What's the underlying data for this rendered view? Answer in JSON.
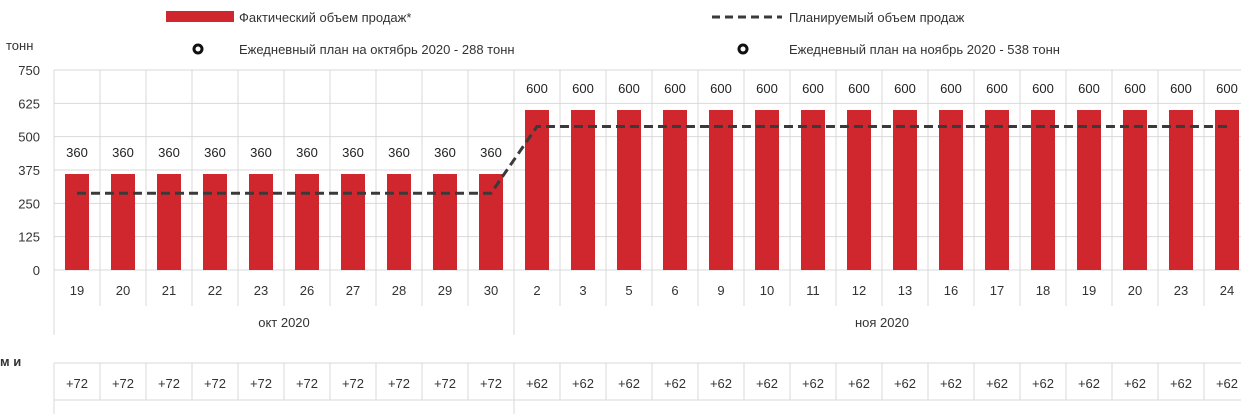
{
  "legend": {
    "actual": "Фактический объем продаж*",
    "planned": "Планируемый объем продаж",
    "plan_oct": "Ежедневный план на октябрь 2020 - 288 тонн",
    "plan_nov": "Ежедневный план на ноябрь 2020 - 538 тонн"
  },
  "unit_label": "тонн",
  "lower_label": "м и",
  "colors": {
    "bar": "#d0262d",
    "plan_line": "#3a3a3a",
    "grid": "#d9d9d9",
    "legend_dot": "#111111"
  },
  "chart_data": {
    "type": "bar",
    "categories": [
      "19",
      "20",
      "21",
      "22",
      "23",
      "26",
      "27",
      "28",
      "29",
      "30",
      "2",
      "3",
      "5",
      "6",
      "9",
      "10",
      "11",
      "12",
      "13",
      "16",
      "17",
      "18",
      "19",
      "20",
      "23",
      "24"
    ],
    "groups": [
      {
        "label": "окт 2020",
        "count": 10
      },
      {
        "label": "ноя 2020",
        "count": 16
      }
    ],
    "series": [
      {
        "name": "Фактический объем продаж*",
        "type": "bar",
        "values": [
          360,
          360,
          360,
          360,
          360,
          360,
          360,
          360,
          360,
          360,
          600,
          600,
          600,
          600,
          600,
          600,
          600,
          600,
          600,
          600,
          600,
          600,
          600,
          600,
          600,
          600
        ]
      },
      {
        "name": "Планируемый объем продаж",
        "type": "line",
        "style": "dashed",
        "values": [
          288,
          288,
          288,
          288,
          288,
          288,
          288,
          288,
          288,
          288,
          538,
          538,
          538,
          538,
          538,
          538,
          538,
          538,
          538,
          538,
          538,
          538,
          538,
          538,
          538,
          538
        ]
      }
    ],
    "data_labels": [
      "360",
      "360",
      "360",
      "360",
      "360",
      "360",
      "360",
      "360",
      "360",
      "360",
      "600",
      "600",
      "600",
      "600",
      "600",
      "600",
      "600",
      "600",
      "600",
      "600",
      "600",
      "600",
      "600",
      "600",
      "600",
      "600"
    ],
    "yticks": [
      0,
      125,
      250,
      375,
      500,
      625,
      750
    ],
    "ylim": [
      0,
      750
    ],
    "grid": true,
    "diff_row": [
      "+72",
      "+72",
      "+72",
      "+72",
      "+72",
      "+72",
      "+72",
      "+72",
      "+72",
      "+72",
      "+62",
      "+62",
      "+62",
      "+62",
      "+62",
      "+62",
      "+62",
      "+62",
      "+62",
      "+62",
      "+62",
      "+62",
      "+62",
      "+62",
      "+62",
      "+62"
    ]
  }
}
